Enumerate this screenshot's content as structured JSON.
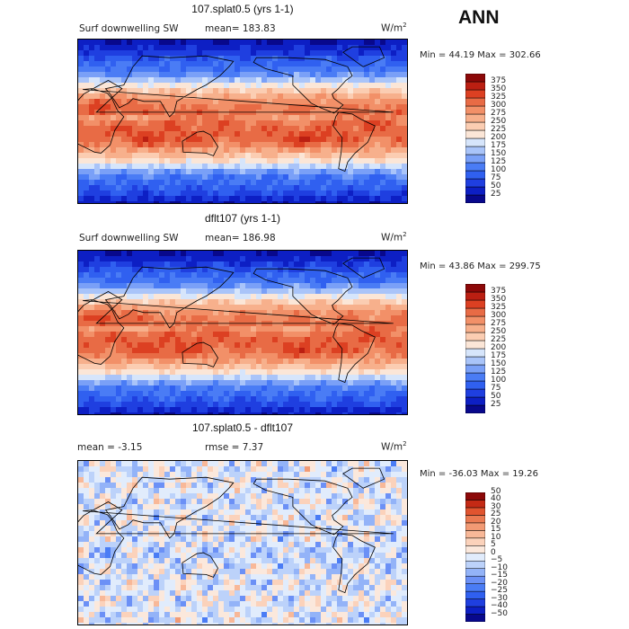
{
  "season": "ANN",
  "panels": [
    {
      "title": "107.splat0.5 (yrs 1-1)",
      "left_label": "Surf downwelling SW",
      "center_label": "mean= 183.83",
      "units": "W/m",
      "units_exp": "2",
      "stats": "Min =  44.19 Max = 302.66",
      "kind": "abs"
    },
    {
      "title": "dflt107 (yrs 1-1)",
      "left_label": "Surf downwelling SW",
      "center_label": "mean= 186.98",
      "units": "W/m",
      "units_exp": "2",
      "stats": "Min =  43.86 Max = 299.75",
      "kind": "abs"
    },
    {
      "title": "107.splat0.5 - dflt107",
      "left_label": "mean =  -3.15",
      "center_label": "rmse =   7.37",
      "units": "W/m",
      "units_exp": "2",
      "stats": "Min = -36.03 Max =  19.26",
      "kind": "diff"
    }
  ],
  "chart_data": [
    {
      "type": "heatmap",
      "title": "107.splat0.5 (yrs 1-1)",
      "variable": "Surf downwelling SW",
      "units": "W/m2",
      "mean": 183.83,
      "min": 44.19,
      "max": 302.66,
      "colorbar_levels": [
        25,
        50,
        75,
        100,
        125,
        150,
        175,
        200,
        225,
        250,
        275,
        300,
        325,
        350,
        375
      ],
      "colors": [
        "#08088c",
        "#0d1fc4",
        "#1f3fe0",
        "#3060f0",
        "#4a7cf5",
        "#7aa0f7",
        "#a9c4f9",
        "#d6e5fb",
        "#fbe6d7",
        "#fbcdb2",
        "#f7b08c",
        "#f29068",
        "#e86b45",
        "#dc4022",
        "#bb1f12",
        "#8c0808"
      ]
    },
    {
      "type": "heatmap",
      "title": "dflt107 (yrs 1-1)",
      "variable": "Surf downwelling SW",
      "units": "W/m2",
      "mean": 186.98,
      "min": 43.86,
      "max": 299.75,
      "colorbar_levels": [
        25,
        50,
        75,
        100,
        125,
        150,
        175,
        200,
        225,
        250,
        275,
        300,
        325,
        350,
        375
      ],
      "colors": [
        "#08088c",
        "#0d1fc4",
        "#1f3fe0",
        "#3060f0",
        "#4a7cf5",
        "#7aa0f7",
        "#a9c4f9",
        "#d6e5fb",
        "#fbe6d7",
        "#fbcdb2",
        "#f7b08c",
        "#f29068",
        "#e86b45",
        "#dc4022",
        "#bb1f12",
        "#8c0808"
      ]
    },
    {
      "type": "heatmap",
      "title": "107.splat0.5 - dflt107",
      "units": "W/m2",
      "mean": -3.15,
      "rmse": 7.37,
      "min": -36.03,
      "max": 19.26,
      "colorbar_levels": [
        -50,
        -40,
        -30,
        -25,
        -20,
        -15,
        -10,
        -5,
        0,
        5,
        10,
        15,
        20,
        25,
        30,
        40,
        50
      ],
      "colorbar_tick_labels": [
        "−50",
        "−40",
        "−30",
        "−25",
        "−20",
        "−15",
        "−10",
        "−5",
        "0",
        "5",
        "10",
        "15",
        "20",
        "25",
        "30",
        "40",
        "50"
      ],
      "colors": [
        "#08088c",
        "#0d1fc4",
        "#1f3fe0",
        "#3060f0",
        "#4a7cf5",
        "#6b90f6",
        "#93b3f8",
        "#bcd2fa",
        "#e1ecfc",
        "#fbe8dc",
        "#fbd2bb",
        "#f8b898",
        "#f29a74",
        "#ea7a52",
        "#e0542f",
        "#c42a15",
        "#8c0808"
      ]
    }
  ]
}
